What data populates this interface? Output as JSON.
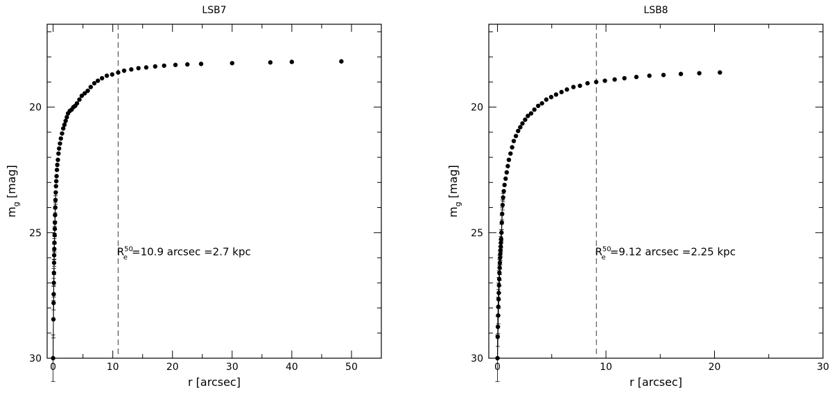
{
  "chart_data": [
    {
      "type": "scatter",
      "title": "LSB7",
      "xlabel": "r [arcsec]",
      "ylabel_main": "m",
      "ylabel_sub": "g",
      "ylabel_unit": " [mag]",
      "xlim": [
        -1,
        55
      ],
      "ylim": [
        30,
        16.7
      ],
      "y_inverted": true,
      "xticks": [
        0,
        10,
        20,
        30,
        40,
        50
      ],
      "yticks": [
        20,
        25,
        30
      ],
      "reference_line_x": 10.9,
      "annotation": {
        "main": "R",
        "sup": "50",
        "sub": "e",
        "text": "=10.9 arcsec =2.7 kpc",
        "x": 10.7,
        "y": 25.9
      },
      "series": [
        {
          "x": [
            0,
            0.05,
            0.08,
            0.1,
            0.12,
            0.14,
            0.16,
            0.18,
            0.2,
            0.22,
            0.25,
            0.28,
            0.3,
            0.33,
            0.36,
            0.4,
            0.44,
            0.48,
            0.53,
            0.58,
            0.64,
            0.7,
            0.8,
            0.9,
            1.0,
            1.15,
            1.3,
            1.5,
            1.7,
            1.9,
            2.1,
            2.3,
            2.5,
            2.8,
            3.1,
            3.4,
            3.7,
            4.0,
            4.4,
            4.8,
            5.3,
            5.8,
            6.3,
            6.9,
            7.5,
            8.2,
            9.0,
            9.9,
            10.9,
            11.9,
            13.1,
            14.3,
            15.6,
            17.1,
            18.6,
            20.5,
            22.5,
            24.8,
            30.0,
            36.4,
            40.0,
            48.3
          ],
          "y": [
            30.0,
            28.45,
            27.8,
            27.45,
            27.0,
            26.6,
            26.2,
            25.9,
            25.65,
            25.4,
            25.1,
            24.85,
            24.6,
            24.3,
            24.0,
            23.7,
            23.4,
            23.15,
            22.95,
            22.75,
            22.5,
            22.3,
            22.1,
            21.85,
            21.65,
            21.45,
            21.25,
            21.05,
            20.85,
            20.7,
            20.55,
            20.4,
            20.25,
            20.15,
            20.1,
            20.0,
            19.95,
            19.85,
            19.7,
            19.55,
            19.45,
            19.35,
            19.2,
            19.05,
            18.95,
            18.85,
            18.75,
            18.7,
            18.62,
            18.55,
            18.5,
            18.45,
            18.42,
            18.38,
            18.35,
            18.32,
            18.3,
            18.28,
            18.25,
            18.22,
            18.2,
            18.18
          ]
        }
      ]
    },
    {
      "type": "scatter",
      "title": "LSB8",
      "xlabel": "r [arcsec]",
      "ylabel_main": "m",
      "ylabel_sub": "g",
      "ylabel_unit": " [mag]",
      "xlim": [
        -0.8,
        30
      ],
      "ylim": [
        30,
        16.7
      ],
      "y_inverted": true,
      "xticks": [
        0,
        10,
        20,
        30
      ],
      "yticks": [
        20,
        25,
        30
      ],
      "reference_line_x": 9.12,
      "annotation": {
        "main": "R",
        "sup": "50",
        "sub": "e",
        "text": "=9.12 arcsec =2.25 kpc",
        "x": 9.0,
        "y": 25.9
      },
      "series": [
        {
          "x": [
            0,
            0.02,
            0.04,
            0.06,
            0.08,
            0.1,
            0.12,
            0.14,
            0.16,
            0.18,
            0.2,
            0.22,
            0.24,
            0.26,
            0.28,
            0.3,
            0.32,
            0.34,
            0.37,
            0.4,
            0.43,
            0.47,
            0.52,
            0.58,
            0.65,
            0.75,
            0.85,
            0.95,
            1.05,
            1.2,
            1.35,
            1.5,
            1.7,
            1.9,
            2.1,
            2.3,
            2.55,
            2.8,
            3.1,
            3.4,
            3.75,
            4.1,
            4.5,
            4.95,
            5.4,
            5.9,
            6.4,
            7.0,
            7.6,
            8.3,
            9.1,
            9.9,
            10.8,
            11.7,
            12.8,
            14.0,
            15.3,
            16.9,
            18.6,
            20.5
          ],
          "y": [
            30.0,
            29.15,
            28.75,
            28.3,
            27.95,
            27.65,
            27.4,
            27.1,
            26.85,
            26.6,
            26.4,
            26.2,
            26.0,
            25.85,
            25.7,
            25.55,
            25.4,
            25.25,
            25.0,
            24.6,
            24.25,
            23.9,
            23.6,
            23.35,
            23.1,
            22.85,
            22.6,
            22.35,
            22.1,
            21.85,
            21.6,
            21.35,
            21.15,
            20.95,
            20.8,
            20.65,
            20.5,
            20.35,
            20.25,
            20.1,
            19.95,
            19.85,
            19.7,
            19.6,
            19.5,
            19.4,
            19.3,
            19.2,
            19.15,
            19.05,
            19.0,
            18.95,
            18.9,
            18.85,
            18.8,
            18.75,
            18.72,
            18.68,
            18.65,
            18.62
          ]
        }
      ]
    }
  ]
}
